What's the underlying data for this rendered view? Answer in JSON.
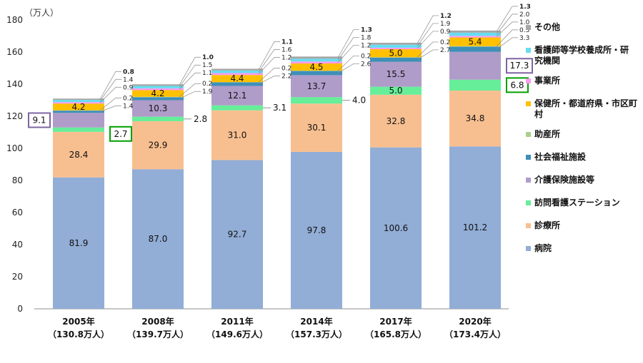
{
  "chart_data": {
    "type": "bar",
    "stacked": true,
    "unit_label": "（万人）",
    "ylim": [
      0,
      180
    ],
    "yticks": [
      0,
      20,
      40,
      60,
      80,
      100,
      120,
      140,
      160,
      180
    ],
    "categories": [
      [
        "2005年",
        "（130.8万人）"
      ],
      [
        "2008年",
        "（139.7万人）"
      ],
      [
        "2011年",
        "（149.6万人）"
      ],
      [
        "2014年",
        "（157.3万人）"
      ],
      [
        "2017年",
        "（165.8万人）"
      ],
      [
        "2020年",
        "（173.4万人）"
      ]
    ],
    "series": [
      {
        "name": "病院",
        "color": "#92add6",
        "values": [
          81.9,
          87.0,
          92.7,
          97.8,
          100.6,
          101.2
        ]
      },
      {
        "name": "診療所",
        "color": "#f7bf90",
        "values": [
          28.4,
          29.9,
          31.0,
          30.1,
          32.8,
          34.8
        ]
      },
      {
        "name": "訪問看護ステーション",
        "color": "#66ee99",
        "values": [
          2.7,
          2.8,
          3.1,
          4.0,
          5.0,
          6.8
        ]
      },
      {
        "name": "介護保険施設等",
        "color": "#b09cc9",
        "values": [
          9.1,
          10.3,
          12.1,
          13.7,
          15.5,
          17.3
        ]
      },
      {
        "name": "社会福祉施設",
        "color": "#3f8fb8",
        "values": [
          1.4,
          1.9,
          2.2,
          2.6,
          2.7,
          3.3
        ]
      },
      {
        "name": "助産所",
        "color": "#a8d08d",
        "values": [
          0.2,
          0.2,
          0.2,
          0.2,
          0.2,
          0.3
        ]
      },
      {
        "name": "保健所・都道府県・市区町村",
        "legend_lines": [
          "保健所・都道府県・市区町",
          "村"
        ],
        "color": "#ffc000",
        "values": [
          4.2,
          4.2,
          4.4,
          4.5,
          5.0,
          5.4
        ]
      },
      {
        "name": "事業所",
        "color": "#ff99ee",
        "values": [
          0.9,
          1.1,
          1.2,
          1.2,
          0.9,
          1.0
        ]
      },
      {
        "name": "看護師等学校養成所・研究機関",
        "legend_lines": [
          "看護師等学校養成所・研",
          "究機関"
        ],
        "color": "#66ddf2",
        "values": [
          1.4,
          1.5,
          1.6,
          1.8,
          1.9,
          2.0
        ]
      },
      {
        "name": "その他",
        "color": "#a6a6a6",
        "values": [
          0.8,
          1.0,
          1.1,
          1.3,
          1.2,
          1.3
        ]
      }
    ],
    "label_text": [
      [
        "81.9",
        "28.4",
        "2.7",
        "9.1",
        "1.4",
        "0.2",
        "4.2",
        "0.9",
        "1.4",
        "0.8"
      ],
      [
        "87.0",
        "29.9",
        "2.8",
        "10.3",
        "1.9",
        "0.2",
        "4.2",
        "1.1",
        "1.5",
        "1.0"
      ],
      [
        "92.7",
        "31.0",
        "3.1",
        "12.1",
        "2.2",
        "0.2",
        "4.4",
        "1.2",
        "1.6",
        "1.1"
      ],
      [
        "97.8",
        "30.1",
        "4.0",
        "13.7",
        "2.6",
        "0.2",
        "4.5",
        "1.2",
        "1.8",
        "1.3"
      ],
      [
        "100.6",
        "32.8",
        "5.0",
        "15.5",
        "2.7",
        "0.2",
        "5.0",
        "0.9",
        "1.9",
        "1.2"
      ],
      [
        "101.2",
        "34.8",
        "6.8",
        "17.3",
        "3.3",
        "0.3",
        "5.4",
        "1.0",
        "2.0",
        "1.3"
      ]
    ],
    "highlight_boxes": [
      {
        "category": 0,
        "series": 3,
        "text": "9.1",
        "color": "#8064a2"
      },
      {
        "category": 0,
        "series": 2,
        "text": "2.7",
        "color": "#00a000"
      },
      {
        "category": 5,
        "series": 3,
        "text": "17.3",
        "color": "#8064a2"
      },
      {
        "category": 5,
        "series": 2,
        "text": "6.8",
        "color": "#00a000"
      }
    ],
    "legend_order": [
      9,
      8,
      7,
      6,
      5,
      4,
      3,
      2,
      1,
      0
    ],
    "legend_placement": "right",
    "grid": false
  }
}
